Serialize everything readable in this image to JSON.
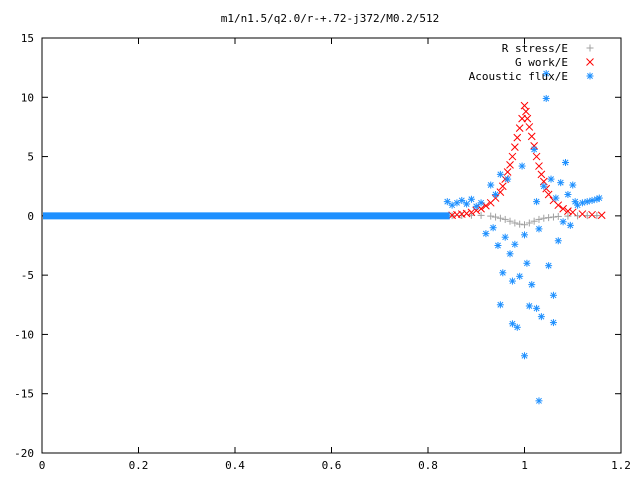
{
  "chart_data": {
    "type": "scatter",
    "title": "m1/n1.5/q2.0/r-+.72-j372/M0.2/512",
    "xlabel": "",
    "ylabel": "",
    "xlim": [
      0,
      1.2
    ],
    "ylim": [
      -20,
      15
    ],
    "xticks": [
      "0",
      "0.2",
      "0.4",
      "0.6",
      "0.8",
      "1",
      "1.2"
    ],
    "yticks": [
      "15",
      "10",
      "5",
      "0",
      "-5",
      "-10",
      "-15",
      "-20"
    ],
    "legend_position": "top-right",
    "grid": false,
    "series": [
      {
        "name": "R stress/E",
        "marker": "plus",
        "color": "#a0a0a0",
        "points": [
          [
            0.85,
            0.02
          ],
          [
            0.87,
            0.03
          ],
          [
            0.89,
            0.05
          ],
          [
            0.91,
            0.04
          ],
          [
            0.93,
            -0.02
          ],
          [
            0.94,
            -0.1
          ],
          [
            0.95,
            -0.2
          ],
          [
            0.96,
            -0.3
          ],
          [
            0.97,
            -0.45
          ],
          [
            0.98,
            -0.6
          ],
          [
            0.99,
            -0.7
          ],
          [
            1.0,
            -0.75
          ],
          [
            1.01,
            -0.6
          ],
          [
            1.02,
            -0.45
          ],
          [
            1.03,
            -0.3
          ],
          [
            1.04,
            -0.2
          ],
          [
            1.05,
            -0.15
          ],
          [
            1.06,
            -0.1
          ],
          [
            1.07,
            -0.05
          ],
          [
            1.09,
            -0.02
          ],
          [
            1.11,
            0.0
          ],
          [
            1.13,
            0.02
          ],
          [
            1.15,
            0.02
          ]
        ]
      },
      {
        "name": "G work/E",
        "marker": "cross",
        "color": "#ff0000",
        "points": [
          [
            0.85,
            0.05
          ],
          [
            0.86,
            0.1
          ],
          [
            0.87,
            0.15
          ],
          [
            0.88,
            0.2
          ],
          [
            0.89,
            0.3
          ],
          [
            0.9,
            0.45
          ],
          [
            0.91,
            0.6
          ],
          [
            0.92,
            0.85
          ],
          [
            0.93,
            1.1
          ],
          [
            0.94,
            1.5
          ],
          [
            0.95,
            2.0
          ],
          [
            0.955,
            2.5
          ],
          [
            0.96,
            3.1
          ],
          [
            0.965,
            3.7
          ],
          [
            0.97,
            4.3
          ],
          [
            0.975,
            5.0
          ],
          [
            0.98,
            5.8
          ],
          [
            0.985,
            6.6
          ],
          [
            0.99,
            7.4
          ],
          [
            0.995,
            8.2
          ],
          [
            1.0,
            9.3
          ],
          [
            1.003,
            8.8
          ],
          [
            1.006,
            8.2
          ],
          [
            1.01,
            7.5
          ],
          [
            1.015,
            6.7
          ],
          [
            1.02,
            5.9
          ],
          [
            1.025,
            5.0
          ],
          [
            1.03,
            4.2
          ],
          [
            1.035,
            3.5
          ],
          [
            1.04,
            2.9
          ],
          [
            1.045,
            2.3
          ],
          [
            1.05,
            1.8
          ],
          [
            1.06,
            1.3
          ],
          [
            1.07,
            0.9
          ],
          [
            1.08,
            0.6
          ],
          [
            1.09,
            0.4
          ],
          [
            1.1,
            0.3
          ],
          [
            1.12,
            0.15
          ],
          [
            1.14,
            0.1
          ],
          [
            1.16,
            0.05
          ]
        ]
      },
      {
        "name": "Acoustic flux/E",
        "marker": "star",
        "color": "#1e90ff",
        "points": [
          [
            0.84,
            1.2
          ],
          [
            0.85,
            0.9
          ],
          [
            0.86,
            1.1
          ],
          [
            0.87,
            1.3
          ],
          [
            0.88,
            1.0
          ],
          [
            0.89,
            1.4
          ],
          [
            0.9,
            0.8
          ],
          [
            0.91,
            1.1
          ],
          [
            0.92,
            -1.5
          ],
          [
            0.93,
            2.6
          ],
          [
            0.935,
            -1.0
          ],
          [
            0.94,
            1.8
          ],
          [
            0.945,
            -2.5
          ],
          [
            0.95,
            3.5
          ],
          [
            0.955,
            -4.8
          ],
          [
            0.96,
            -1.8
          ],
          [
            0.965,
            3.1
          ],
          [
            0.97,
            -3.2
          ],
          [
            0.975,
            -9.1
          ],
          [
            0.98,
            -2.4
          ],
          [
            0.985,
            -9.4
          ],
          [
            0.99,
            -5.1
          ],
          [
            0.995,
            4.2
          ],
          [
            1.0,
            -11.8
          ],
          [
            1.005,
            -4.0
          ],
          [
            1.01,
            -7.6
          ],
          [
            1.015,
            -5.8
          ],
          [
            1.02,
            5.6
          ],
          [
            1.025,
            1.2
          ],
          [
            1.03,
            -15.6
          ],
          [
            1.035,
            -8.5
          ],
          [
            1.04,
            2.5
          ],
          [
            1.045,
            9.9
          ],
          [
            1.05,
            -4.2
          ],
          [
            1.055,
            3.1
          ],
          [
            1.06,
            -6.7
          ],
          [
            1.065,
            1.5
          ],
          [
            1.07,
            -2.1
          ],
          [
            1.075,
            2.8
          ],
          [
            1.08,
            -0.5
          ],
          [
            1.085,
            4.5
          ],
          [
            1.09,
            1.8
          ],
          [
            1.095,
            -0.8
          ],
          [
            1.1,
            2.6
          ],
          [
            1.105,
            1.2
          ],
          [
            1.11,
            0.9
          ],
          [
            1.12,
            1.1
          ],
          [
            1.13,
            1.2
          ],
          [
            1.14,
            1.3
          ],
          [
            1.15,
            1.4
          ],
          [
            1.155,
            1.5
          ],
          [
            1.045,
            12.0
          ],
          [
            0.975,
            -5.5
          ],
          [
            1.0,
            -1.6
          ],
          [
            0.95,
            -7.5
          ],
          [
            1.03,
            -1.1
          ],
          [
            1.06,
            -9.0
          ],
          [
            1.025,
            -7.8
          ]
        ]
      }
    ]
  }
}
